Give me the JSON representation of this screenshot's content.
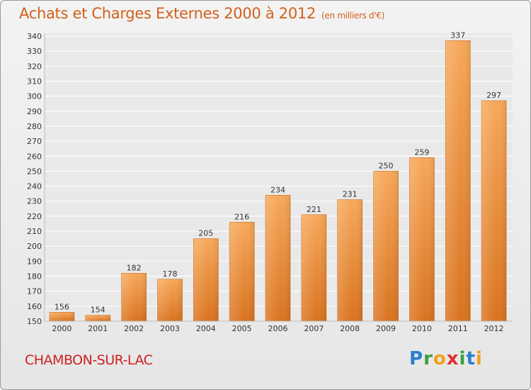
{
  "header": {
    "title": "Achats et Charges Externes 2000 à 2012",
    "unit": "(en milliers d'€)"
  },
  "footer": {
    "commune": "CHAMBON-SUR-LAC",
    "logo_letters": [
      {
        "ch": "P",
        "color": "#2a7fd0"
      },
      {
        "ch": "r",
        "color": "#3aa040"
      },
      {
        "ch": "o",
        "color": "#f0a020"
      },
      {
        "ch": "x",
        "color": "#e03030"
      },
      {
        "ch": "i",
        "color": "#3aa040"
      },
      {
        "ch": "t",
        "color": "#2a7fd0"
      },
      {
        "ch": "i",
        "color": "#f0a020"
      }
    ]
  },
  "chart_data": {
    "type": "bar",
    "title": "Achats et Charges Externes 2000 à 2012",
    "subtitle": "(en milliers d'€)",
    "categories": [
      "2000",
      "2001",
      "2002",
      "2003",
      "2004",
      "2005",
      "2006",
      "2007",
      "2008",
      "2009",
      "2010",
      "2011",
      "2012"
    ],
    "values": [
      156,
      154,
      182,
      178,
      205,
      216,
      234,
      221,
      231,
      250,
      259,
      337,
      297
    ],
    "ylim": [
      150,
      340
    ],
    "yticks": [
      150,
      160,
      170,
      180,
      190,
      200,
      210,
      220,
      230,
      240,
      250,
      260,
      270,
      280,
      290,
      300,
      310,
      320,
      330,
      340
    ],
    "grid": true,
    "bar_color_top": "#f7a85a",
    "bar_color_bottom": "#d9731f",
    "legend": "none"
  }
}
